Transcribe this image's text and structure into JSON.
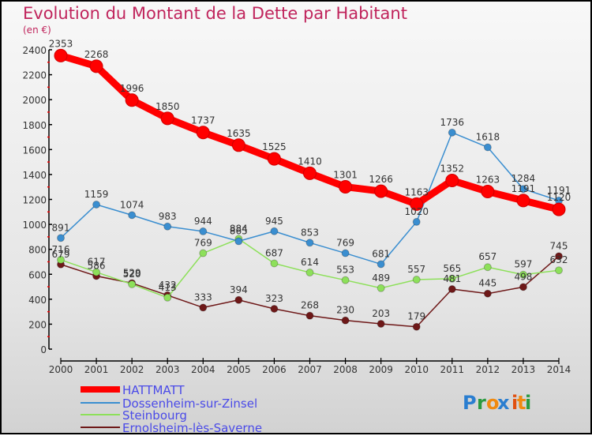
{
  "chart_data": {
    "type": "line",
    "title": "Evolution du Montant de la Dette par Habitant",
    "subtitle": "(en €)",
    "xlabel": "",
    "ylabel": "",
    "ylim": [
      0,
      2400
    ],
    "yticks": [
      0,
      200,
      400,
      600,
      800,
      1000,
      1200,
      1400,
      1600,
      1800,
      2000,
      2200,
      2400
    ],
    "x": [
      "2000",
      "2001",
      "2002",
      "2003",
      "2004",
      "2005",
      "2006",
      "2007",
      "2008",
      "2009",
      "2010",
      "2011",
      "2012",
      "2013",
      "2014"
    ],
    "legend_position": "bottom-left",
    "series": [
      {
        "name": "HATTMATT",
        "color": "#ff0000",
        "values": [
          2353,
          2268,
          1996,
          1850,
          1737,
          1635,
          1525,
          1410,
          1301,
          1266,
          1163,
          1352,
          1263,
          1191,
          1120
        ]
      },
      {
        "name": "Dossenheim-sur-Zinsel",
        "color": "#3a8ed0",
        "values": [
          891,
          1159,
          1074,
          983,
          944,
          865,
          945,
          853,
          769,
          681,
          1020,
          1736,
          1618,
          1284,
          1191
        ]
      },
      {
        "name": "Steinbourg",
        "color": "#8de05a",
        "values": [
          716,
          617,
          520,
          413,
          769,
          884,
          687,
          614,
          553,
          489,
          557,
          565,
          657,
          597,
          632
        ]
      },
      {
        "name": "Ernolsheim-lès-Saverne",
        "color": "#6e1818",
        "values": [
          679,
          586,
          529,
          432,
          333,
          394,
          323,
          268,
          230,
          203,
          179,
          481,
          445,
          498,
          745
        ]
      }
    ]
  },
  "branding": {
    "logo_text": "Proxiti",
    "letters": [
      "P",
      "r",
      "o",
      "x",
      "i",
      "t",
      "i"
    ],
    "letter_colors": [
      "#2a7ed0",
      "#2a9a40",
      "#f08a10",
      "#2a7ed0",
      "#e05010",
      "#f08a10",
      "#2a9a40"
    ]
  }
}
